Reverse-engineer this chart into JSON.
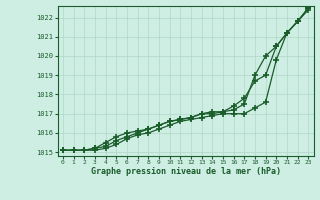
{
  "title": "Graphe pression niveau de la mer (hPa)",
  "background_color": "#ceeee4",
  "grid_color": "#b0d8c8",
  "line_color": "#1a5c2a",
  "xlim": [
    -0.5,
    23.5
  ],
  "ylim": [
    1014.8,
    1022.6
  ],
  "yticks": [
    1015,
    1016,
    1017,
    1018,
    1019,
    1020,
    1021,
    1022
  ],
  "xticks": [
    0,
    1,
    2,
    3,
    4,
    5,
    6,
    7,
    8,
    9,
    10,
    11,
    12,
    13,
    14,
    15,
    16,
    17,
    18,
    19,
    20,
    21,
    22,
    23
  ],
  "series1_x": [
    0,
    1,
    2,
    3,
    4,
    5,
    6,
    7,
    8,
    9,
    10,
    11,
    12,
    13,
    14,
    15,
    16,
    17,
    18,
    19,
    20,
    21,
    22,
    23
  ],
  "series1": [
    1015.1,
    1015.1,
    1015.1,
    1015.1,
    1015.2,
    1015.4,
    1015.7,
    1015.9,
    1016.0,
    1016.2,
    1016.4,
    1016.6,
    1016.7,
    1016.8,
    1016.9,
    1017.0,
    1017.0,
    1017.0,
    1017.3,
    1017.6,
    1019.8,
    1021.2,
    1021.8,
    1022.4
  ],
  "series2_x": [
    0,
    1,
    2,
    3,
    4,
    5,
    6,
    7,
    8,
    9,
    10,
    11,
    12,
    13,
    14,
    15,
    16,
    17,
    18,
    19,
    20,
    21,
    22,
    23
  ],
  "series2": [
    1015.1,
    1015.1,
    1015.1,
    1015.2,
    1015.3,
    1015.6,
    1015.8,
    1016.0,
    1016.2,
    1016.4,
    1016.6,
    1016.7,
    1016.8,
    1017.0,
    1017.0,
    1017.1,
    1017.4,
    1017.8,
    1018.7,
    1019.0,
    1020.5,
    1021.2,
    1021.8,
    1022.5
  ],
  "series3_x": [
    0,
    1,
    2,
    3,
    4,
    5,
    6,
    7,
    8,
    9,
    10,
    11,
    12,
    13,
    14,
    15,
    16,
    17,
    18,
    19,
    20,
    21,
    22,
    23
  ],
  "series3": [
    1015.1,
    1015.1,
    1015.1,
    1015.2,
    1015.5,
    1015.8,
    1016.0,
    1016.1,
    1016.2,
    1016.4,
    1016.6,
    1016.7,
    1016.8,
    1017.0,
    1017.1,
    1017.1,
    1017.2,
    1017.5,
    1019.0,
    1020.0,
    1020.5,
    1021.2,
    1021.8,
    1022.5
  ]
}
